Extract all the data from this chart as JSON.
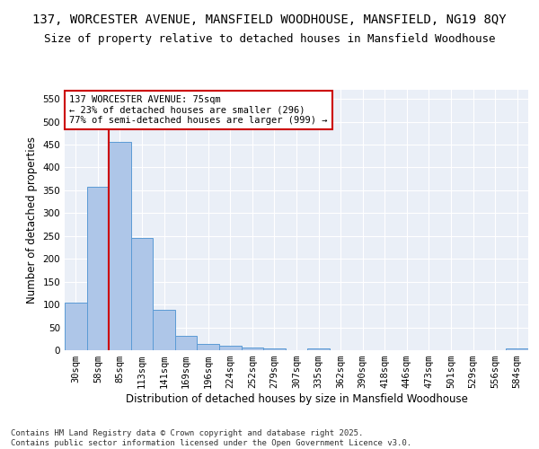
{
  "title_line1": "137, WORCESTER AVENUE, MANSFIELD WOODHOUSE, MANSFIELD, NG19 8QY",
  "title_line2": "Size of property relative to detached houses in Mansfield Woodhouse",
  "xlabel": "Distribution of detached houses by size in Mansfield Woodhouse",
  "ylabel": "Number of detached properties",
  "categories": [
    "30sqm",
    "58sqm",
    "85sqm",
    "113sqm",
    "141sqm",
    "169sqm",
    "196sqm",
    "224sqm",
    "252sqm",
    "279sqm",
    "307sqm",
    "335sqm",
    "362sqm",
    "390sqm",
    "418sqm",
    "446sqm",
    "473sqm",
    "501sqm",
    "529sqm",
    "556sqm",
    "584sqm"
  ],
  "values": [
    105,
    357,
    456,
    246,
    89,
    31,
    13,
    9,
    6,
    4,
    0,
    4,
    0,
    0,
    0,
    0,
    0,
    0,
    0,
    0,
    4
  ],
  "bar_color": "#aec6e8",
  "bar_edge_color": "#5b9bd5",
  "annotation_title": "137 WORCESTER AVENUE: 75sqm",
  "annotation_line2": "← 23% of detached houses are smaller (296)",
  "annotation_line3": "77% of semi-detached houses are larger (999) →",
  "annotation_box_color": "#cc0000",
  "vline_color": "#cc0000",
  "vline_x_index": 2,
  "ylim": [
    0,
    570
  ],
  "yticks": [
    0,
    50,
    100,
    150,
    200,
    250,
    300,
    350,
    400,
    450,
    500,
    550
  ],
  "bg_color": "#eaeff7",
  "footer_line1": "Contains HM Land Registry data © Crown copyright and database right 2025.",
  "footer_line2": "Contains public sector information licensed under the Open Government Licence v3.0.",
  "title_fontsize": 10,
  "subtitle_fontsize": 9,
  "axis_label_fontsize": 8.5,
  "tick_fontsize": 7.5,
  "annotation_fontsize": 7.5,
  "footer_fontsize": 6.5
}
